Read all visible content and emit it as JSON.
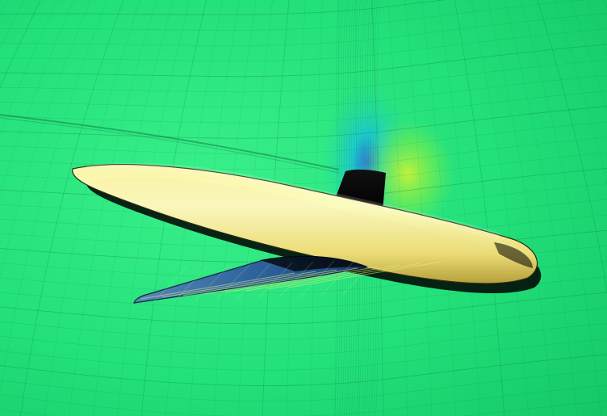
{
  "scene": {
    "colors": {
      "field_base": "#22e07a",
      "field_light": "#46f08c",
      "field_dark": "#12c064",
      "cyan_band": "#19c7d8",
      "deep_blue": "#2a6fe0",
      "yellow_green": "#b9f23a",
      "grid_line": "#0b6b3a",
      "fuselage_light": "#fffcc0",
      "fuselage_mid": "#f0e07a",
      "fuselage_dark": "#b9a23a",
      "shadow": "#000000",
      "wing_blue": "#2e5fa0",
      "wing_highlight": "#e6f07a"
    },
    "layers": [
      "flow-field",
      "mesh-grid",
      "fuselage",
      "vertical-support",
      "wing"
    ]
  }
}
